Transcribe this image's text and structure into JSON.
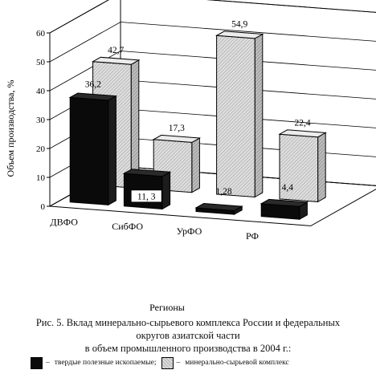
{
  "chart_data": {
    "type": "bar",
    "ylabel": "Объем производства, %",
    "xlabel": "Регионы",
    "ylim": [
      0,
      60
    ],
    "yticks": [
      0,
      10,
      20,
      30,
      40,
      50,
      60
    ],
    "categories": [
      "ДВФО",
      "СибФО",
      "УрФО",
      "РФ"
    ],
    "series": [
      {
        "name": "твердые полезные ископаемые",
        "values": [
          36.2,
          11.3,
          1.28,
          4.4
        ],
        "labels": [
          "36,2",
          "11, 3",
          "1,28",
          "4,4"
        ],
        "color": "#0a0a0a"
      },
      {
        "name": "минерально-сырьевой комплекс",
        "values": [
          42.7,
          17.3,
          54.9,
          22.4
        ],
        "labels": [
          "42,7",
          "17,3",
          "54,9",
          "22,4"
        ],
        "color": "#cfcfcf"
      }
    ],
    "grid": true,
    "legend": "bottom"
  },
  "caption": {
    "line1": "Рис. 5. Вклад минерально-сырьевого комплекса России и федеральных",
    "line2": "округов азиатской части",
    "line3": "в объем промышленного производства в 2004 г.:"
  },
  "legend": {
    "dash": "–",
    "item1": "твердые полезные ископаемые;",
    "item2": "минерально-сырьевой комплекс"
  }
}
